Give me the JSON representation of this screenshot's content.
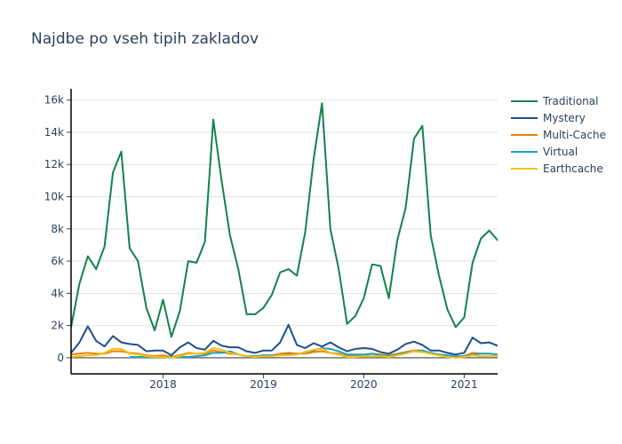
{
  "chart_data": {
    "type": "line",
    "title": "Najdbe po vseh tipih zakladov",
    "xlabel": "",
    "ylabel": "",
    "x_start": "2017-02",
    "x_end": "2021-05",
    "xticks": [
      {
        "label": "2018",
        "date": "2018-01"
      },
      {
        "label": "2019",
        "date": "2019-01"
      },
      {
        "label": "2020",
        "date": "2020-01"
      },
      {
        "label": "2021",
        "date": "2021-01"
      }
    ],
    "ylim": [
      -1000,
      16700
    ],
    "yticks": [
      {
        "label": "0",
        "value": 0
      },
      {
        "label": "2k",
        "value": 2000
      },
      {
        "label": "4k",
        "value": 4000
      },
      {
        "label": "6k",
        "value": 6000
      },
      {
        "label": "8k",
        "value": 8000
      },
      {
        "label": "10k",
        "value": 10000
      },
      {
        "label": "12k",
        "value": 12000
      },
      {
        "label": "14k",
        "value": 14000
      },
      {
        "label": "16k",
        "value": 16000
      }
    ],
    "grid": true,
    "legend_position": "top-right",
    "series": [
      {
        "name": "Traditional",
        "color": "#12824c",
        "points": [
          [
            "2017-02",
            1900
          ],
          [
            "2017-03",
            4600
          ],
          [
            "2017-04",
            6300
          ],
          [
            "2017-05",
            5500
          ],
          [
            "2017-06",
            6900
          ],
          [
            "2017-07",
            11500
          ],
          [
            "2017-08",
            12800
          ],
          [
            "2017-09",
            6800
          ],
          [
            "2017-10",
            6000
          ],
          [
            "2017-11",
            3100
          ],
          [
            "2017-12",
            1700
          ],
          [
            "2018-01",
            3600
          ],
          [
            "2018-02",
            1300
          ],
          [
            "2018-03",
            2900
          ],
          [
            "2018-04",
            6000
          ],
          [
            "2018-05",
            5900
          ],
          [
            "2018-06",
            7200
          ],
          [
            "2018-07",
            14800
          ],
          [
            "2018-08",
            11000
          ],
          [
            "2018-09",
            7600
          ],
          [
            "2018-10",
            5500
          ],
          [
            "2018-11",
            2700
          ],
          [
            "2018-12",
            2700
          ],
          [
            "2019-01",
            3100
          ],
          [
            "2019-02",
            3900
          ],
          [
            "2019-03",
            5300
          ],
          [
            "2019-04",
            5500
          ],
          [
            "2019-05",
            5100
          ],
          [
            "2019-06",
            7800
          ],
          [
            "2019-07",
            12300
          ],
          [
            "2019-08",
            15800
          ],
          [
            "2019-09",
            8000
          ],
          [
            "2019-10",
            5500
          ],
          [
            "2019-11",
            2100
          ],
          [
            "2019-12",
            2600
          ],
          [
            "2020-01",
            3700
          ],
          [
            "2020-02",
            5800
          ],
          [
            "2020-03",
            5700
          ],
          [
            "2020-04",
            3700
          ],
          [
            "2020-05",
            7300
          ],
          [
            "2020-06",
            9300
          ],
          [
            "2020-07",
            13600
          ],
          [
            "2020-08",
            14400
          ],
          [
            "2020-09",
            7600
          ],
          [
            "2020-10",
            5100
          ],
          [
            "2020-11",
            3000
          ],
          [
            "2020-12",
            1900
          ],
          [
            "2021-01",
            2500
          ],
          [
            "2021-02",
            5900
          ],
          [
            "2021-03",
            7400
          ],
          [
            "2021-04",
            7900
          ],
          [
            "2021-05",
            7300
          ],
          [
            "2021-06",
            6800
          ]
        ]
      },
      {
        "name": "Mystery",
        "color": "#1f4e8c",
        "points": [
          [
            "2017-02",
            300
          ],
          [
            "2017-03",
            950
          ],
          [
            "2017-04",
            1950
          ],
          [
            "2017-05",
            1050
          ],
          [
            "2017-06",
            700
          ],
          [
            "2017-07",
            1350
          ],
          [
            "2017-08",
            950
          ],
          [
            "2017-09",
            850
          ],
          [
            "2017-10",
            800
          ],
          [
            "2017-11",
            400
          ],
          [
            "2017-12",
            450
          ],
          [
            "2018-01",
            450
          ],
          [
            "2018-02",
            150
          ],
          [
            "2018-03",
            650
          ],
          [
            "2018-04",
            950
          ],
          [
            "2018-05",
            600
          ],
          [
            "2018-06",
            500
          ],
          [
            "2018-07",
            1050
          ],
          [
            "2018-08",
            750
          ],
          [
            "2018-09",
            650
          ],
          [
            "2018-10",
            650
          ],
          [
            "2018-11",
            400
          ],
          [
            "2018-12",
            300
          ],
          [
            "2019-01",
            450
          ],
          [
            "2019-02",
            450
          ],
          [
            "2019-03",
            950
          ],
          [
            "2019-04",
            2050
          ],
          [
            "2019-05",
            800
          ],
          [
            "2019-06",
            600
          ],
          [
            "2019-07",
            900
          ],
          [
            "2019-08",
            700
          ],
          [
            "2019-09",
            950
          ],
          [
            "2019-10",
            650
          ],
          [
            "2019-11",
            400
          ],
          [
            "2019-12",
            550
          ],
          [
            "2020-01",
            600
          ],
          [
            "2020-02",
            550
          ],
          [
            "2020-03",
            350
          ],
          [
            "2020-04",
            250
          ],
          [
            "2020-05",
            500
          ],
          [
            "2020-06",
            850
          ],
          [
            "2020-07",
            1000
          ],
          [
            "2020-08",
            800
          ],
          [
            "2020-09",
            450
          ],
          [
            "2020-10",
            450
          ],
          [
            "2020-11",
            300
          ],
          [
            "2020-12",
            200
          ],
          [
            "2021-01",
            300
          ],
          [
            "2021-02",
            1250
          ],
          [
            "2021-03",
            900
          ],
          [
            "2021-04",
            950
          ],
          [
            "2021-05",
            750
          ],
          [
            "2021-06",
            750
          ]
        ]
      },
      {
        "name": "Multi-Cache",
        "color": "#f07f09",
        "points": [
          [
            "2017-02",
            200
          ],
          [
            "2017-03",
            250
          ],
          [
            "2017-04",
            300
          ],
          [
            "2017-05",
            250
          ],
          [
            "2017-06",
            250
          ],
          [
            "2017-07",
            400
          ],
          [
            "2017-08",
            400
          ],
          [
            "2017-09",
            300
          ],
          [
            "2017-10",
            250
          ],
          [
            "2017-11",
            150
          ],
          [
            "2017-12",
            100
          ],
          [
            "2018-01",
            150
          ],
          [
            "2018-02",
            50
          ],
          [
            "2018-03",
            150
          ],
          [
            "2018-04",
            300
          ],
          [
            "2018-05",
            250
          ],
          [
            "2018-06",
            250
          ],
          [
            "2018-07",
            450
          ],
          [
            "2018-08",
            350
          ],
          [
            "2018-09",
            250
          ],
          [
            "2018-10",
            200
          ],
          [
            "2018-11",
            100
          ],
          [
            "2018-12",
            100
          ],
          [
            "2019-01",
            150
          ],
          [
            "2019-02",
            150
          ],
          [
            "2019-03",
            250
          ],
          [
            "2019-04",
            300
          ],
          [
            "2019-05",
            250
          ],
          [
            "2019-06",
            250
          ],
          [
            "2019-07",
            350
          ],
          [
            "2019-08",
            400
          ],
          [
            "2019-09",
            300
          ],
          [
            "2019-10",
            250
          ],
          [
            "2019-11",
            100
          ],
          [
            "2019-12",
            100
          ],
          [
            "2020-01",
            150
          ],
          [
            "2020-02",
            250
          ],
          [
            "2020-03",
            200
          ],
          [
            "2020-04",
            150
          ],
          [
            "2020-05",
            250
          ],
          [
            "2020-06",
            350
          ],
          [
            "2020-07",
            450
          ],
          [
            "2020-08",
            450
          ],
          [
            "2020-09",
            250
          ],
          [
            "2020-10",
            200
          ],
          [
            "2020-11",
            100
          ],
          [
            "2020-12",
            50
          ],
          [
            "2021-01",
            100
          ],
          [
            "2021-02",
            300
          ],
          [
            "2021-03",
            250
          ],
          [
            "2021-04",
            250
          ],
          [
            "2021-05",
            200
          ],
          [
            "2021-06",
            200
          ]
        ]
      },
      {
        "name": "Virtual",
        "color": "#17a2c4",
        "points": [
          [
            "2017-09",
            50
          ],
          [
            "2017-10",
            50
          ],
          [
            "2017-11",
            50
          ],
          [
            "2017-12",
            50
          ],
          [
            "2018-01",
            50
          ],
          [
            "2018-02",
            50
          ],
          [
            "2018-03",
            50
          ],
          [
            "2018-04",
            50
          ],
          [
            "2018-05",
            100
          ],
          [
            "2018-06",
            150
          ],
          [
            "2018-07",
            300
          ],
          [
            "2018-08",
            300
          ],
          [
            "2018-09",
            400
          ],
          [
            "2018-10",
            200
          ],
          [
            "2018-11",
            100
          ],
          [
            "2018-12",
            100
          ],
          [
            "2019-01",
            150
          ],
          [
            "2019-02",
            150
          ],
          [
            "2019-03",
            150
          ],
          [
            "2019-04",
            200
          ],
          [
            "2019-05",
            200
          ],
          [
            "2019-06",
            350
          ],
          [
            "2019-07",
            450
          ],
          [
            "2019-08",
            600
          ],
          [
            "2019-09",
            550
          ],
          [
            "2019-10",
            400
          ],
          [
            "2019-11",
            200
          ],
          [
            "2019-12",
            200
          ],
          [
            "2020-01",
            200
          ],
          [
            "2020-02",
            250
          ],
          [
            "2020-03",
            150
          ],
          [
            "2020-04",
            100
          ],
          [
            "2020-05",
            200
          ],
          [
            "2020-06",
            300
          ],
          [
            "2020-07",
            400
          ],
          [
            "2020-08",
            450
          ],
          [
            "2020-09",
            300
          ],
          [
            "2020-10",
            200
          ],
          [
            "2020-11",
            150
          ],
          [
            "2020-12",
            100
          ],
          [
            "2021-01",
            100
          ],
          [
            "2021-02",
            200
          ],
          [
            "2021-03",
            250
          ],
          [
            "2021-04",
            250
          ],
          [
            "2021-05",
            200
          ],
          [
            "2021-06",
            200
          ]
        ]
      },
      {
        "name": "Earthcache",
        "color": "#f4c20d",
        "points": [
          [
            "2017-02",
            50
          ],
          [
            "2017-03",
            100
          ],
          [
            "2017-04",
            150
          ],
          [
            "2017-05",
            150
          ],
          [
            "2017-06",
            300
          ],
          [
            "2017-07",
            550
          ],
          [
            "2017-08",
            550
          ],
          [
            "2017-09",
            250
          ],
          [
            "2017-10",
            200
          ],
          [
            "2017-11",
            100
          ],
          [
            "2017-12",
            50
          ],
          [
            "2018-01",
            50
          ],
          [
            "2018-02",
            0
          ],
          [
            "2018-03",
            100
          ],
          [
            "2018-04",
            250
          ],
          [
            "2018-05",
            250
          ],
          [
            "2018-06",
            300
          ],
          [
            "2018-07",
            600
          ],
          [
            "2018-08",
            500
          ],
          [
            "2018-09",
            300
          ],
          [
            "2018-10",
            200
          ],
          [
            "2018-11",
            100
          ],
          [
            "2018-12",
            50
          ],
          [
            "2019-01",
            100
          ],
          [
            "2019-02",
            100
          ],
          [
            "2019-03",
            150
          ],
          [
            "2019-04",
            150
          ],
          [
            "2019-05",
            200
          ],
          [
            "2019-06",
            350
          ],
          [
            "2019-07",
            500
          ],
          [
            "2019-08",
            550
          ],
          [
            "2019-09",
            300
          ],
          [
            "2019-10",
            200
          ],
          [
            "2019-11",
            50
          ],
          [
            "2019-12",
            50
          ],
          [
            "2020-01",
            100
          ],
          [
            "2020-02",
            100
          ],
          [
            "2020-03",
            100
          ],
          [
            "2020-04",
            50
          ],
          [
            "2020-05",
            150
          ],
          [
            "2020-06",
            250
          ],
          [
            "2020-07",
            400
          ],
          [
            "2020-08",
            350
          ],
          [
            "2020-09",
            250
          ],
          [
            "2020-10",
            150
          ],
          [
            "2020-11",
            50
          ],
          [
            "2020-12",
            0
          ],
          [
            "2021-01",
            50
          ],
          [
            "2021-02",
            150
          ],
          [
            "2021-03",
            100
          ],
          [
            "2021-04",
            100
          ],
          [
            "2021-05",
            100
          ],
          [
            "2021-06",
            150
          ]
        ]
      }
    ]
  }
}
